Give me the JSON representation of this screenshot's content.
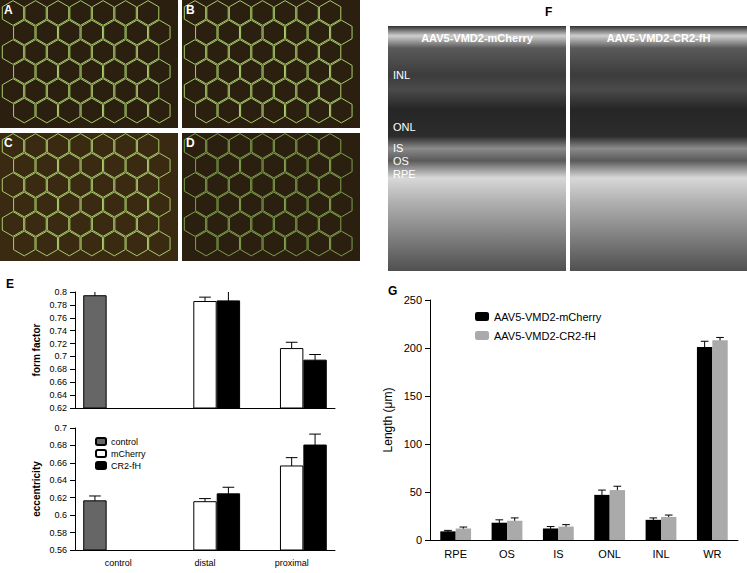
{
  "images": [
    {
      "label": "A"
    },
    {
      "label": "B"
    },
    {
      "label": "C"
    },
    {
      "label": "D"
    }
  ],
  "oct": {
    "label": "F",
    "titles": [
      "AAV5-VMD2-mCherry",
      "AAV5-VMD2-CR2-fH"
    ],
    "layers": [
      "INL",
      "ONL",
      "IS",
      "OS",
      "RPE"
    ]
  },
  "chart_data": [
    {
      "title": "E",
      "type": "bar",
      "categories": [
        "control",
        "distal",
        "proximal"
      ],
      "series": [
        {
          "name": "control",
          "color": "#666666",
          "values": [
            0.795,
            null,
            null
          ],
          "errors": [
            0.007,
            null,
            null
          ]
        },
        {
          "name": "mCherry",
          "color": "#ffffff",
          "values": [
            null,
            0.786,
            0.713
          ],
          "errors": [
            null,
            0.006,
            0.009
          ]
        },
        {
          "name": "CR2-fH",
          "color": "#000000",
          "values": [
            null,
            0.787,
            0.695
          ],
          "errors": [
            null,
            0.015,
            0.008
          ]
        }
      ],
      "ylabel": "form factor",
      "ylim": [
        0.62,
        0.8
      ],
      "yticks": [
        0.62,
        0.64,
        0.66,
        0.68,
        0.7,
        0.72,
        0.74,
        0.76,
        0.78,
        0.8
      ],
      "grid": false,
      "tick_labels": "y"
    },
    {
      "type": "bar",
      "categories": [
        "control",
        "distal",
        "proximal"
      ],
      "series": [
        {
          "name": "control",
          "color": "#666666",
          "values": [
            0.617,
            null,
            null
          ],
          "errors": [
            0.005,
            null,
            null
          ]
        },
        {
          "name": "mCherry",
          "color": "#ffffff",
          "values": [
            null,
            0.616,
            0.657
          ],
          "errors": [
            null,
            0.003,
            0.009
          ]
        },
        {
          "name": "CR2-fH",
          "color": "#000000",
          "values": [
            null,
            0.625,
            0.681
          ],
          "errors": [
            null,
            0.007,
            0.012
          ]
        }
      ],
      "ylabel": "eccentricity",
      "ylim": [
        0.56,
        0.7
      ],
      "yticks": [
        0.56,
        0.58,
        0.6,
        0.62,
        0.64,
        0.66,
        0.68,
        0.7
      ],
      "grid": false,
      "legend": "upper left"
    },
    {
      "title": "G",
      "type": "bar",
      "categories": [
        "RPE",
        "OS",
        "IS",
        "ONL",
        "INL",
        "WR"
      ],
      "series": [
        {
          "name": "AAV5-VMD2-mCherry",
          "color": "#000000",
          "values": [
            9,
            18,
            12,
            47,
            21,
            201
          ],
          "errors": [
            1,
            3,
            2,
            5,
            2,
            6
          ]
        },
        {
          "name": "AAV5-VMD2-CR2-fH",
          "color": "#aaaaaa",
          "values": [
            12,
            20,
            14,
            52,
            24,
            208
          ],
          "errors": [
            1.5,
            3,
            2,
            4,
            2,
            3
          ]
        }
      ],
      "ylabel": "Length (μm)",
      "ylim": [
        0,
        250
      ],
      "yticks": [
        0,
        50,
        100,
        150,
        200,
        250
      ],
      "grid": false,
      "legend": "upper left"
    }
  ]
}
